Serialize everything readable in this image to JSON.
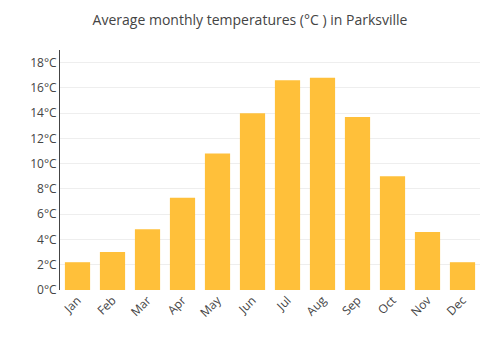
{
  "chart_data": {
    "type": "bar",
    "title": "Average monthly temperatures (°C ) in Parksville",
    "categories": [
      "Jan",
      "Feb",
      "Mar",
      "Apr",
      "May",
      "Jun",
      "Jul",
      "Aug",
      "Sep",
      "Oct",
      "Nov",
      "Dec"
    ],
    "values": [
      2.2,
      3.0,
      4.8,
      7.3,
      10.8,
      14.0,
      16.6,
      16.8,
      13.7,
      9.0,
      4.6,
      2.2
    ],
    "color": "#FFC03A",
    "ylim": [
      0,
      19
    ],
    "yticks": [
      {
        "value": 0,
        "label": "0°C"
      },
      {
        "value": 2,
        "label": "2°C"
      },
      {
        "value": 4,
        "label": "4°C"
      },
      {
        "value": 6,
        "label": "6°C"
      },
      {
        "value": 8,
        "label": "8°C"
      },
      {
        "value": 10,
        "label": "10°C"
      },
      {
        "value": 12,
        "label": "12°C"
      },
      {
        "value": 14,
        "label": "14°C"
      },
      {
        "value": 16,
        "label": "16°C"
      },
      {
        "value": 18,
        "label": "18°C"
      }
    ],
    "grid": true
  }
}
